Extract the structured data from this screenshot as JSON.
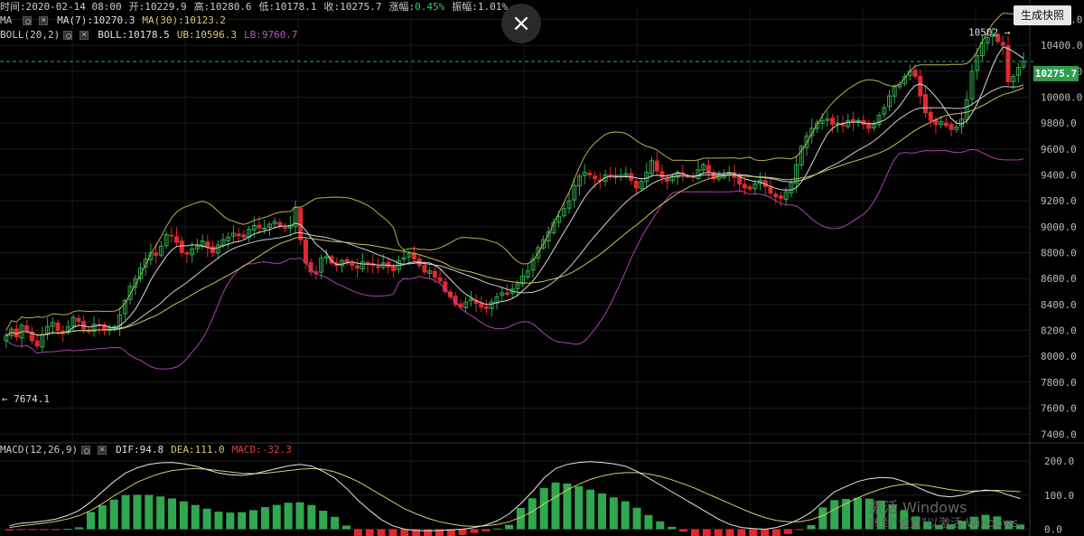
{
  "info_bar": {
    "time": "时间:2020-02-14 08:00",
    "open": "开:10229.9",
    "high": "高:10280.6",
    "low": "低:10178.1",
    "close": "收:10275.7",
    "change_label": "涨幅:",
    "change_value": "0.45%",
    "amplitude": "振幅:1.01%"
  },
  "ma_row": {
    "label": "MA",
    "ma7": "MA(7):10270.3",
    "ma30": "MA(30):10123.2"
  },
  "boll_row": {
    "label": "BOLL(20,2)",
    "boll": "BOLL:10178.5",
    "ub": "UB:10596.3",
    "lb": "LB:9760.7"
  },
  "macd_row": {
    "label": "MACD(12,26,9)",
    "dif": "DIF:94.8",
    "dea": "DEA:111.0",
    "macd": "MACD:-32.3"
  },
  "close_icon": "×",
  "snapshot_button": "生成快照",
  "price_tag": "10275.7",
  "annotations": {
    "high": "10502 →",
    "low": "← 7674.1"
  },
  "watermark": {
    "line1": "激活 Windows",
    "line2": "转到\"设置\"以激活 Windows。"
  },
  "colors": {
    "up": "#2fa84f",
    "down": "#e0282e",
    "ma7": "#d8d8d8",
    "ma30": "#c8c060",
    "boll_mid": "#cccccc",
    "boll_ub": "#b8b050",
    "boll_lb": "#b040b0",
    "dif": "#e6e6e6",
    "dea": "#d8c870",
    "price_line": "#2fa84f",
    "accent_green": "#33cc66",
    "accent_red": "#e04040"
  },
  "chart_data": {
    "type": "candlestick",
    "y_axis": {
      "ticks": [
        10600,
        10400,
        10200,
        10000,
        9800,
        9600,
        9400,
        9200,
        9000,
        8800,
        8600,
        8400,
        8200,
        8000,
        7800,
        7600,
        7400
      ],
      "range": [
        7360,
        10680
      ]
    },
    "macd_axis": {
      "ticks": [
        200.0,
        100.0,
        0.0
      ],
      "labels": [
        "200.0",
        "100.0",
        "0.0"
      ],
      "range": [
        -20,
        240
      ]
    },
    "price_closes": [
      8160,
      8210,
      8150,
      8240,
      8190,
      8120,
      8080,
      8170,
      8230,
      8260,
      8200,
      8180,
      8230,
      8300,
      8270,
      8210,
      8190,
      8250,
      8240,
      8200,
      8220,
      8230,
      8320,
      8430,
      8540,
      8600,
      8680,
      8750,
      8800,
      8780,
      8850,
      8940,
      8930,
      8880,
      8800,
      8790,
      8830,
      8850,
      8890,
      8840,
      8800,
      8860,
      8900,
      8920,
      8950,
      8930,
      8920,
      8980,
      9010,
      8990,
      8990,
      9020,
      9040,
      9000,
      8990,
      9010,
      9150,
      8900,
      8720,
      8650,
      8640,
      8760,
      8770,
      8720,
      8700,
      8740,
      8720,
      8700,
      8680,
      8730,
      8710,
      8700,
      8690,
      8720,
      8690,
      8660,
      8740,
      8760,
      8790,
      8750,
      8700,
      8650,
      8660,
      8610,
      8580,
      8500,
      8460,
      8400,
      8380,
      8420,
      8440,
      8410,
      8380,
      8370,
      8420,
      8460,
      8490,
      8480,
      8520,
      8560,
      8620,
      8660,
      8750,
      8840,
      8900,
      8960,
      9030,
      9080,
      9140,
      9200,
      9320,
      9390,
      9420,
      9400,
      9370,
      9360,
      9400,
      9390,
      9380,
      9400,
      9410,
      9360,
      9300,
      9350,
      9420,
      9510,
      9430,
      9380,
      9350,
      9390,
      9420,
      9400,
      9390,
      9380,
      9440,
      9480,
      9420,
      9370,
      9390,
      9400,
      9420,
      9380,
      9330,
      9300,
      9290,
      9330,
      9360,
      9310,
      9260,
      9230,
      9220,
      9270,
      9340,
      9480,
      9620,
      9700,
      9760,
      9800,
      9820,
      9830,
      9790,
      9800,
      9780,
      9820,
      9810,
      9820,
      9790,
      9760,
      9790,
      9860,
      9920,
      10010,
      10080,
      10100,
      10160,
      10200,
      10160,
      10010,
      9880,
      9820,
      9790,
      9810,
      9780,
      9750,
      9770,
      9830,
      9980,
      10200,
      10320,
      10420,
      10460,
      10480,
      10430,
      10400,
      10120,
      10160,
      10230,
      10276
    ],
    "macd": {
      "dif": [
        10,
        18,
        20,
        24,
        30,
        40,
        55,
        80,
        110,
        140,
        165,
        180,
        190,
        195,
        196,
        192,
        185,
        175,
        165,
        160,
        158,
        162,
        170,
        178,
        186,
        190,
        185,
        170,
        150,
        120,
        85,
        55,
        28,
        10,
        0,
        -4,
        -5,
        -4,
        -2,
        0,
        5,
        12,
        25,
        45,
        75,
        110,
        150,
        178,
        190,
        196,
        198,
        196,
        192,
        185,
        170,
        150,
        130,
        110,
        90,
        70,
        50,
        30,
        14,
        5,
        2,
        0,
        5,
        15,
        30,
        50,
        80,
        110,
        125,
        140,
        148,
        152,
        150,
        140,
        125,
        110,
        98,
        95,
        100,
        110,
        115,
        112,
        100,
        90
      ],
      "dea": [
        5,
        10,
        14,
        18,
        23,
        30,
        40,
        55,
        75,
        98,
        118,
        138,
        152,
        164,
        172,
        176,
        178,
        176,
        172,
        168,
        164,
        163,
        164,
        168,
        172,
        176,
        178,
        176,
        168,
        155,
        140,
        120,
        100,
        80,
        60,
        45,
        32,
        22,
        15,
        10,
        8,
        10,
        14,
        22,
        35,
        52,
        74,
        95,
        115,
        132,
        146,
        156,
        163,
        166,
        166,
        162,
        155,
        145,
        133,
        120,
        105,
        90,
        75,
        60,
        46,
        34,
        26,
        22,
        22,
        28,
        40,
        58,
        75,
        92,
        106,
        118,
        127,
        132,
        132,
        128,
        122,
        116,
        112,
        112,
        113,
        114,
        112,
        110
      ]
    },
    "annotation_high": 10502,
    "annotation_low": 7674.1,
    "last_price": 10275.7
  }
}
